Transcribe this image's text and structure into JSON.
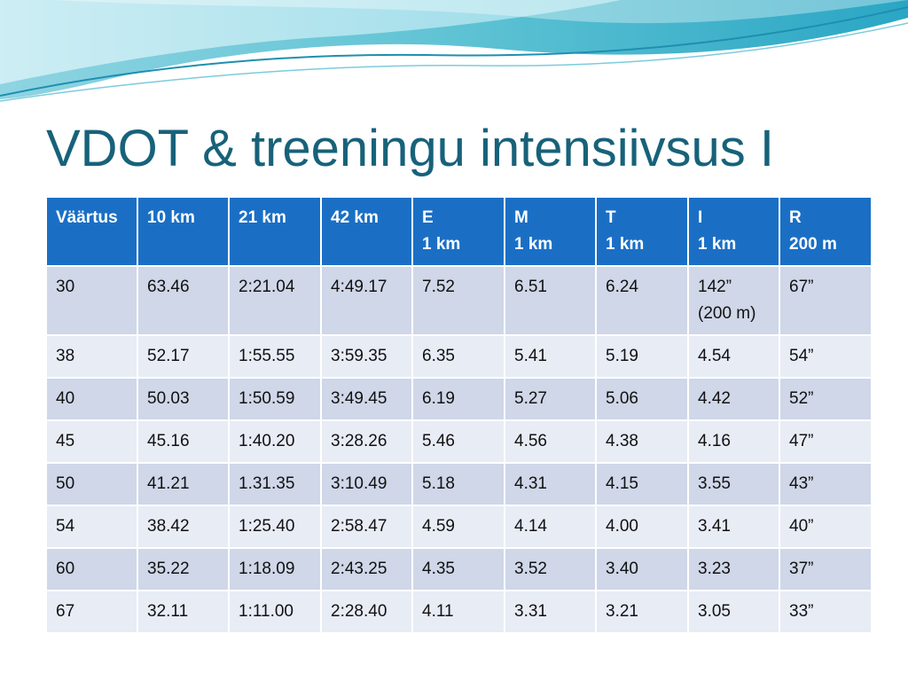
{
  "title": "VDOT & treeningu intensiivsus I",
  "table": {
    "headers": [
      "Väärtus",
      "10 km",
      "21 km",
      "42 km",
      "E\n 1 km",
      "M\n1 km",
      "T\n1 km",
      "I\n1 km",
      "R\n200 m"
    ],
    "rows": [
      [
        "30",
        "63.46",
        "2:21.04",
        "4:49.17",
        "7.52",
        "6.51",
        "6.24",
        "142”\n(200 m)",
        "67”"
      ],
      [
        "38",
        "52.17",
        "1:55.55",
        "3:59.35",
        "6.35",
        "5.41",
        "5.19",
        "4.54",
        "54”"
      ],
      [
        "40",
        "50.03",
        "1:50.59",
        "3:49.45",
        "6.19",
        "5.27",
        "5.06",
        "4.42",
        "52”"
      ],
      [
        "45",
        "45.16",
        "1:40.20",
        "3:28.26",
        "5.46",
        "4.56",
        "4.38",
        "4.16",
        "47”"
      ],
      [
        "50",
        "41.21",
        "1.31.35",
        "3:10.49",
        "5.18",
        "4.31",
        "4.15",
        "3.55",
        "43”"
      ],
      [
        "54",
        "38.42",
        "1:25.40",
        "2:58.47",
        "4.59",
        "4.14",
        "4.00",
        "3.41",
        "40”"
      ],
      [
        "60",
        "35.22",
        "1:18.09",
        "2:43.25",
        "4.35",
        "3.52",
        "3.40",
        "3.23",
        "37”"
      ],
      [
        "67",
        "32.11",
        "1:11.00",
        "2:28.40",
        "4.11",
        "3.31",
        "3.21",
        "3.05",
        "33”"
      ]
    ]
  },
  "colors": {
    "title": "#17627a",
    "header_bg": "#1a6fc5",
    "row_dark": "#cfd7e8",
    "row_light": "#e8ecf5",
    "wave_teal": "#5fc3d4",
    "wave_light": "#bfe8f0"
  }
}
